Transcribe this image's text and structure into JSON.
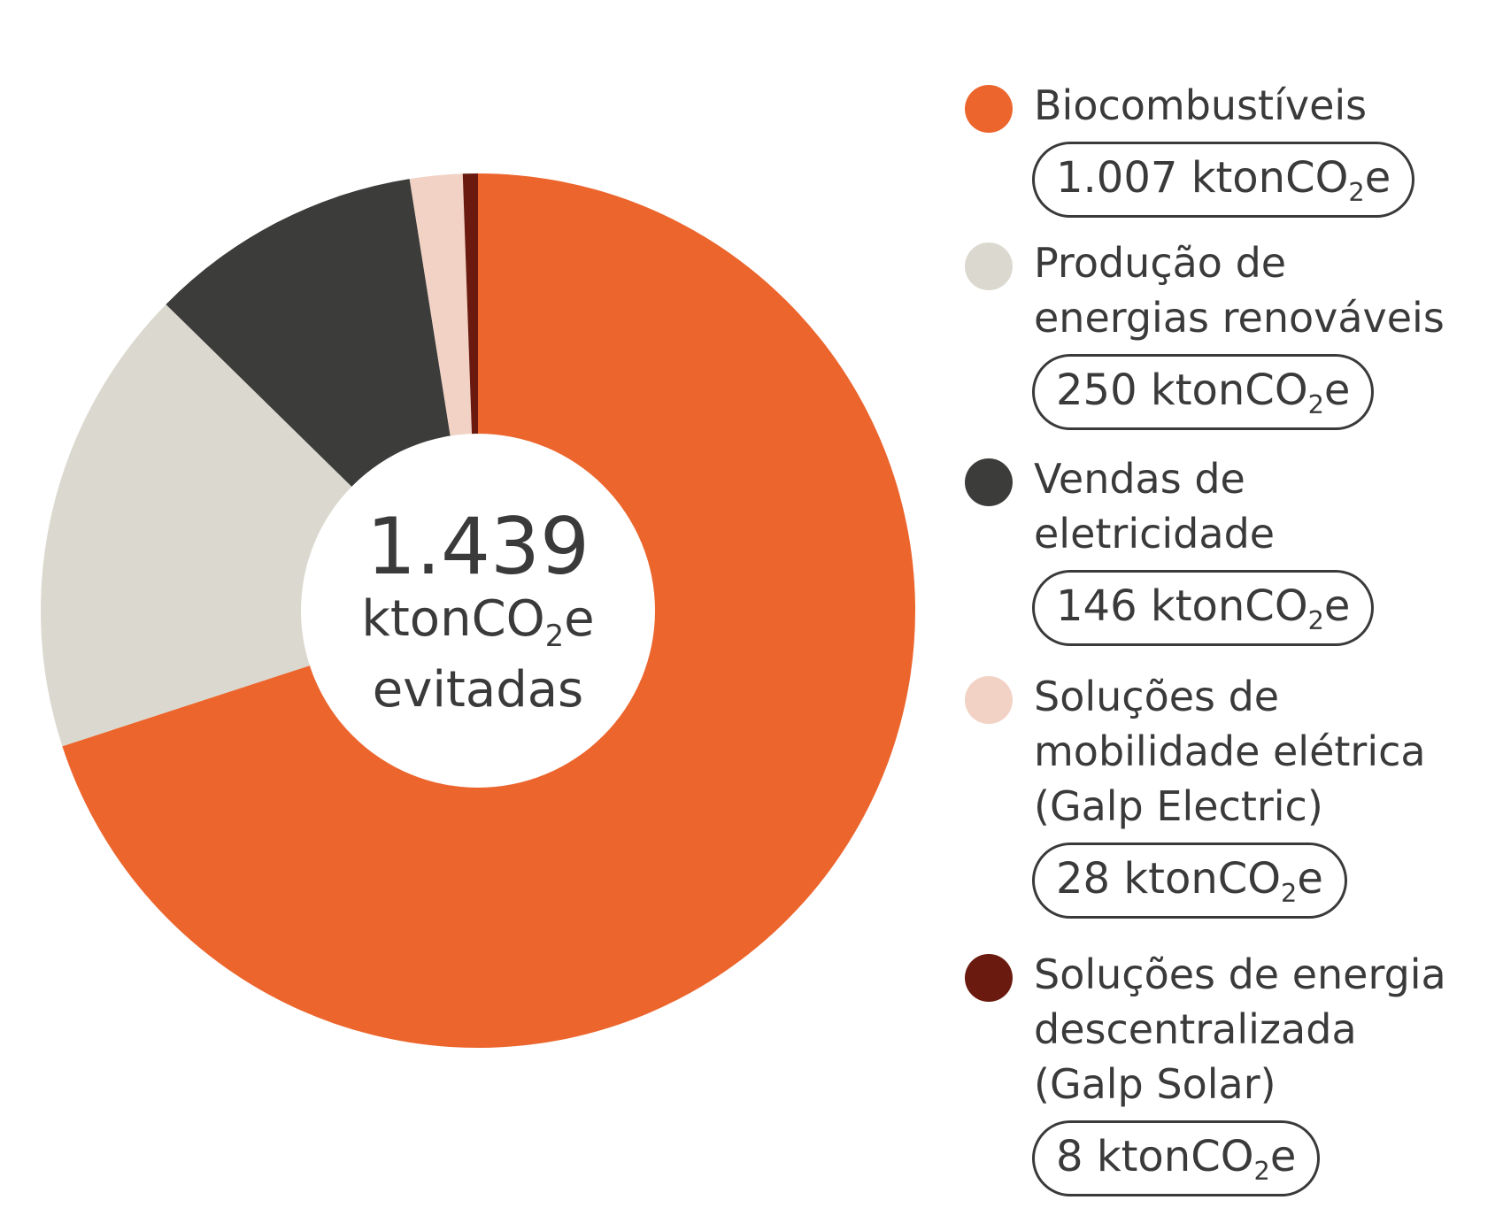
{
  "chart_data": {
    "type": "pie",
    "title": "",
    "center": {
      "total": "1.439",
      "unit_prefix": "ktonCO",
      "unit_sub": "2",
      "unit_suffix": "e",
      "caption": "evitadas"
    },
    "legend_position": "right",
    "slices": [
      {
        "label": "Biocombustíveis",
        "value": 1007,
        "display": "1.007",
        "color": "#ec652d"
      },
      {
        "label": "Produção de\nenergias renováveis",
        "value": 250,
        "display": "250",
        "color": "#dbd9cf"
      },
      {
        "label": "Vendas de\neletricidade",
        "value": 146,
        "display": "146",
        "color": "#3c3c3b"
      },
      {
        "label": "Soluções de\nmobilidade elétrica\n(Galp Electric)",
        "value": 28,
        "display": "28",
        "color": "#f2d2c4"
      },
      {
        "label": "Soluções de energia\ndescentralizada\n(Galp Solar)",
        "value": 8,
        "display": "8",
        "color": "#6b1a0f"
      }
    ]
  }
}
